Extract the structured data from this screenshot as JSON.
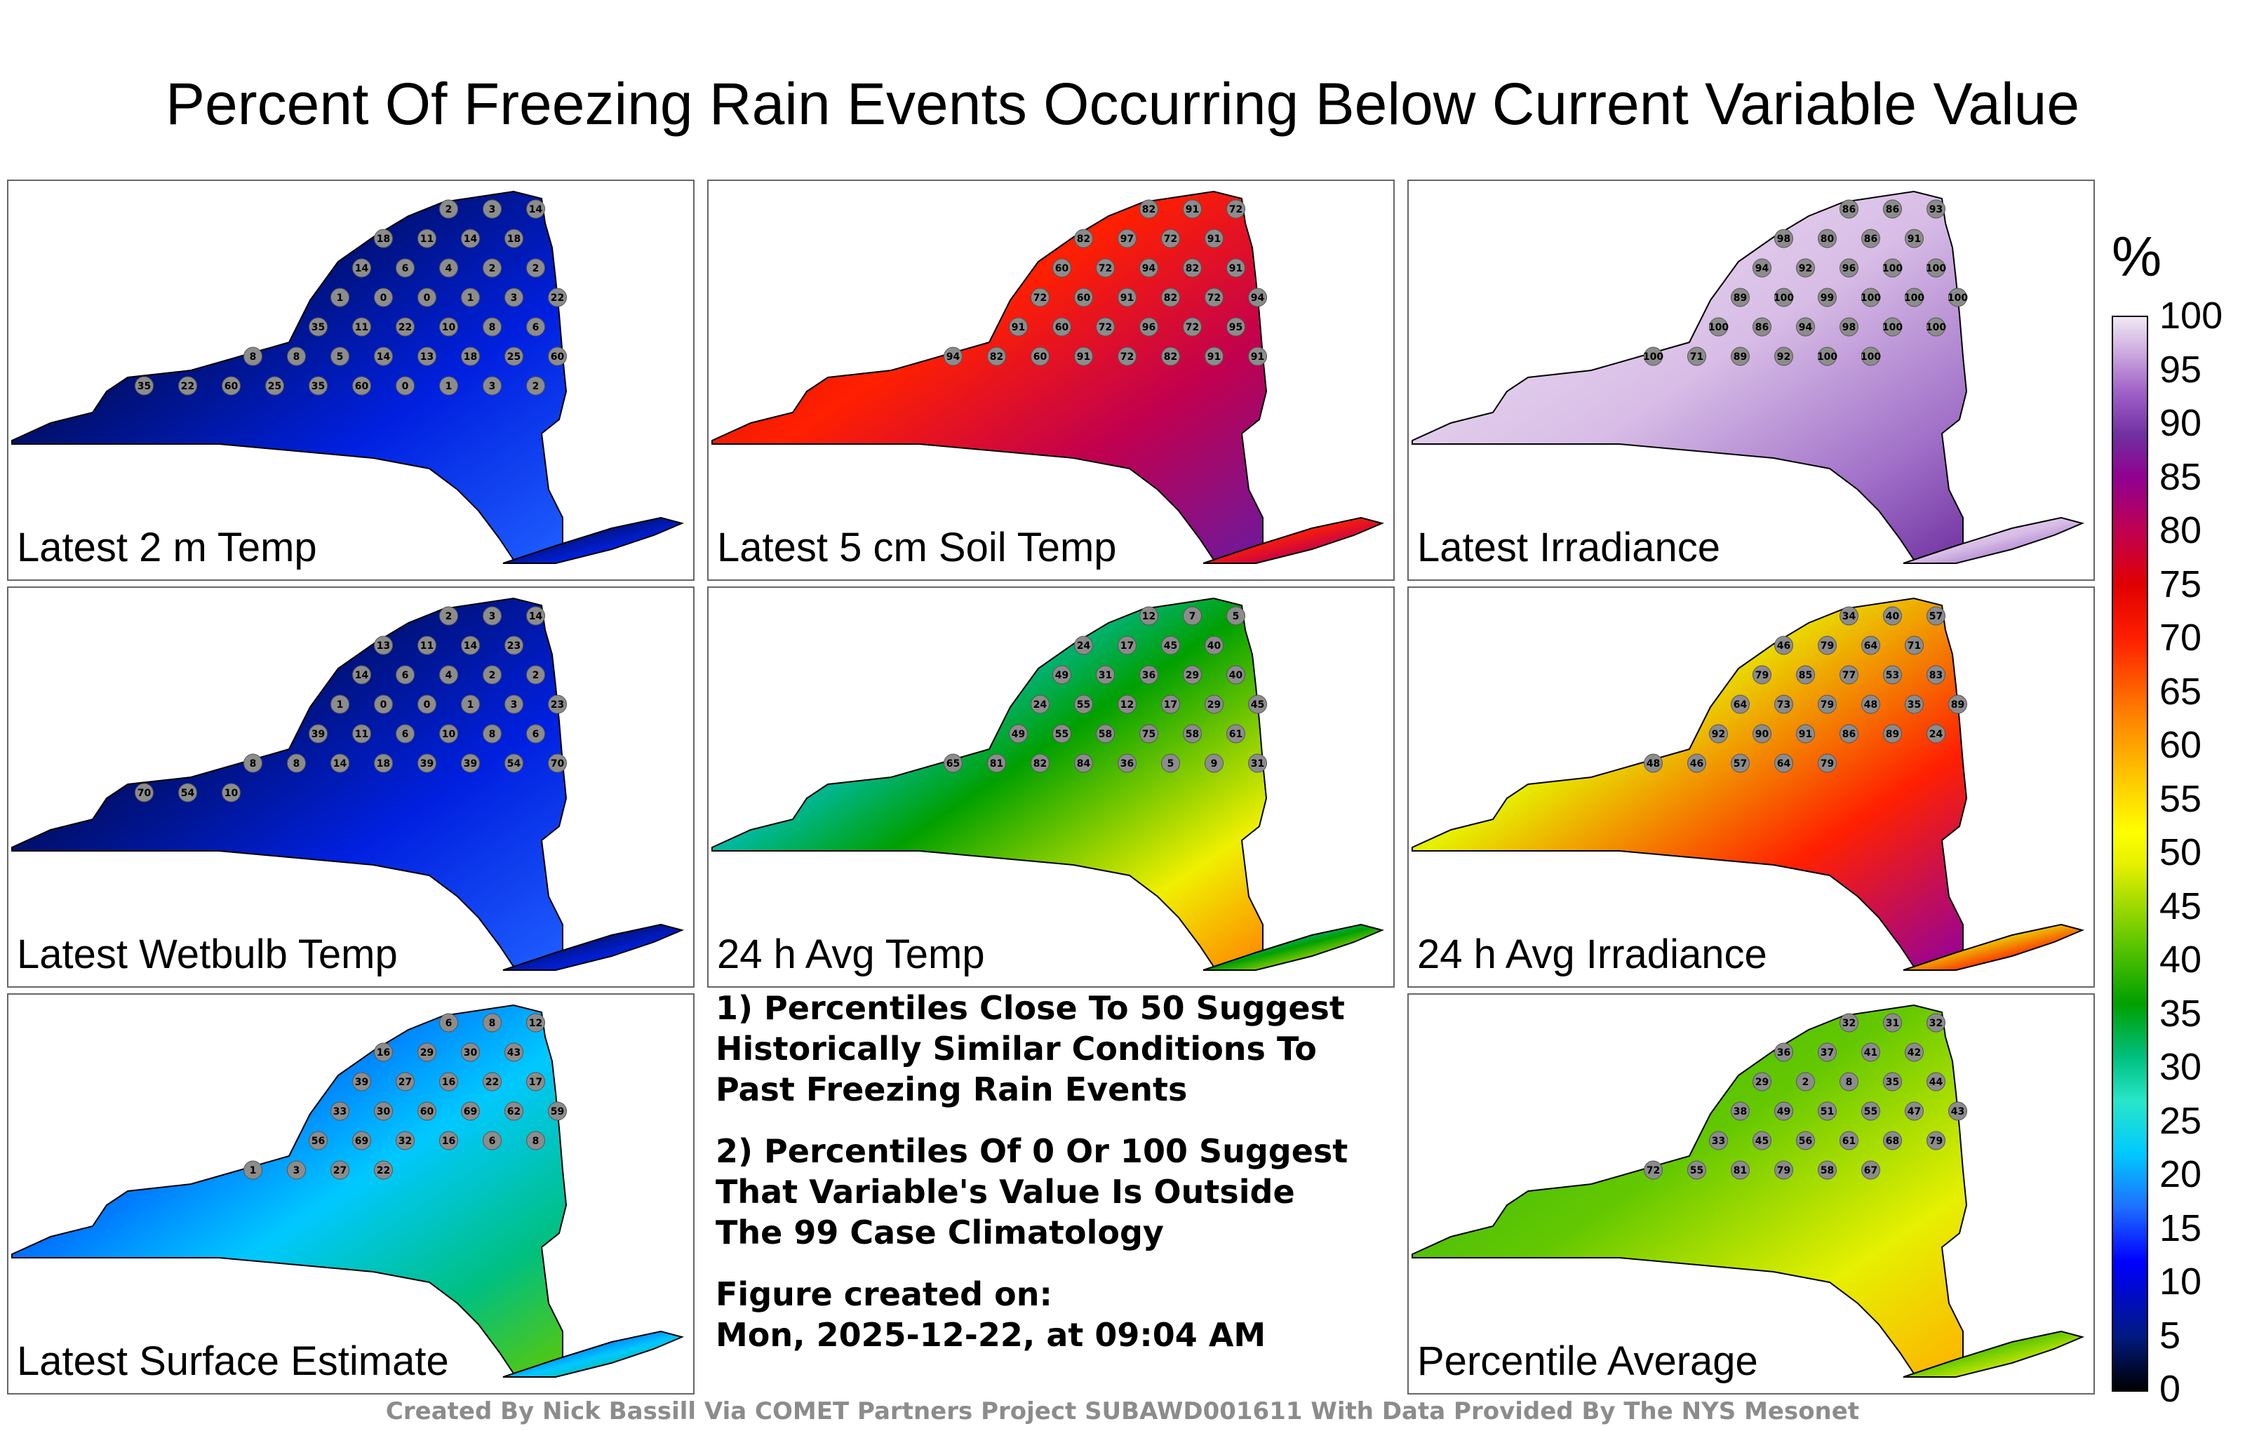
{
  "title": "Percent Of Freezing Rain Events Occurring Below Current Variable Value",
  "panels": [
    {
      "label": "Latest 2 m Temp",
      "scheme": "cold",
      "values": [
        2,
        3,
        14,
        18,
        11,
        14,
        18,
        14,
        6,
        4,
        2,
        2,
        1,
        0,
        0,
        1,
        3,
        22,
        35,
        11,
        22,
        10,
        8,
        6,
        8,
        8,
        5,
        14,
        13,
        18,
        25,
        60,
        35,
        22,
        60,
        25,
        35,
        60,
        0,
        1,
        3,
        2
      ]
    },
    {
      "label": "Latest 5 cm Soil Temp",
      "scheme": "hot",
      "values": [
        82,
        91,
        72,
        82,
        97,
        72,
        91,
        60,
        72,
        94,
        82,
        91,
        72,
        60,
        91,
        82,
        72,
        94,
        91,
        60,
        72,
        96,
        72,
        95,
        94,
        82,
        60,
        91,
        72,
        82,
        91,
        91
      ]
    },
    {
      "label": "Latest Irradiance",
      "scheme": "purple",
      "values": [
        86,
        86,
        93,
        98,
        80,
        86,
        91,
        94,
        92,
        96,
        100,
        100,
        89,
        100,
        99,
        100,
        100,
        100,
        100,
        86,
        94,
        98,
        100,
        100,
        100,
        71,
        89,
        92,
        100,
        100
      ]
    },
    {
      "label": "Latest Wetbulb Temp",
      "scheme": "cold",
      "values": [
        2,
        3,
        14,
        13,
        11,
        14,
        23,
        14,
        6,
        4,
        2,
        2,
        1,
        0,
        0,
        1,
        3,
        23,
        39,
        11,
        6,
        10,
        8,
        6,
        8,
        8,
        14,
        18,
        39,
        39,
        54,
        70,
        70,
        54,
        10
      ]
    },
    {
      "label": "24 h Avg Temp",
      "scheme": "warm",
      "values": [
        12,
        7,
        5,
        24,
        17,
        45,
        40,
        49,
        31,
        36,
        29,
        40,
        24,
        55,
        12,
        17,
        29,
        45,
        49,
        55,
        58,
        75,
        58,
        61,
        65,
        81,
        82,
        84,
        36,
        5,
        9,
        31
      ]
    },
    {
      "label": "24 h Avg Irradiance",
      "scheme": "mixed",
      "values": [
        34,
        40,
        57,
        46,
        79,
        64,
        71,
        79,
        85,
        77,
        53,
        83,
        64,
        73,
        79,
        48,
        35,
        89,
        92,
        90,
        91,
        86,
        89,
        24,
        48,
        46,
        57,
        64,
        79
      ]
    },
    {
      "label": "Latest Surface Estimate",
      "scheme": "cool",
      "values": [
        6,
        8,
        12,
        16,
        29,
        30,
        43,
        39,
        27,
        16,
        22,
        17,
        33,
        30,
        60,
        69,
        62,
        59,
        56,
        69,
        32,
        16,
        6,
        8,
        1,
        3,
        27,
        22
      ]
    },
    {
      "label": "Percentile Average",
      "scheme": "avg",
      "values": [
        32,
        31,
        32,
        36,
        37,
        41,
        42,
        29,
        2,
        8,
        35,
        44,
        38,
        49,
        51,
        55,
        47,
        43,
        33,
        45,
        56,
        61,
        68,
        79,
        72,
        55,
        81,
        79,
        58,
        67
      ]
    }
  ],
  "notes": [
    "1) Percentiles Close To 50 Suggest Historically Similar Conditions To Past Freezing Rain Events",
    "2) Percentiles Of 0 Or 100 Suggest That Variable's Value Is Outside The 99 Case Climatology"
  ],
  "figure_created_label": "Figure created on:",
  "figure_created_value": "Mon, 2025-12-22, at 09:04 AM",
  "credit": "Created By Nick Bassill Via COMET Partners Project SUBAWD001611 With Data Provided By The NYS Mesonet",
  "colorbar": {
    "unit": "%",
    "ticks": [
      "100",
      "95",
      "90",
      "85",
      "80",
      "75",
      "70",
      "65",
      "60",
      "55",
      "50",
      "45",
      "40",
      "35",
      "30",
      "25",
      "20",
      "15",
      "10",
      "5",
      "0"
    ]
  },
  "colors": {
    "station_fill": "#8c8c8c",
    "border_gray": "#666666"
  }
}
